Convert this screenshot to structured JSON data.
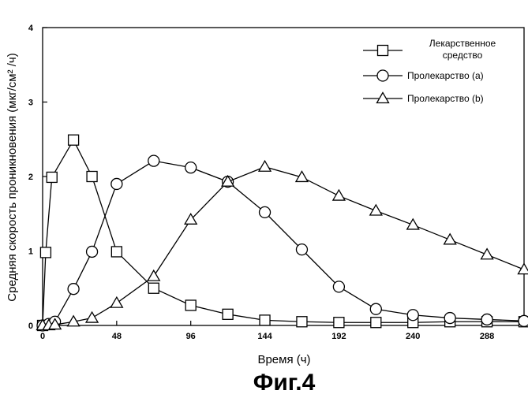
{
  "chart_data": {
    "type": "line",
    "title": "",
    "caption": "Фиг.4",
    "xlabel": "Время (ч)",
    "ylabel": "Средняя скорость проникновения (мкг/см² /ч)",
    "xlim": [
      0,
      312
    ],
    "ylim": [
      0,
      4
    ],
    "xticks": [
      0,
      48,
      96,
      144,
      192,
      240,
      288
    ],
    "yticks": [
      0,
      1,
      2,
      3,
      4
    ],
    "grid": false,
    "legend_position": "top-right",
    "series": [
      {
        "name": "Лекарственное средство",
        "name_line2": "средство",
        "marker": "square",
        "points": [
          [
            0,
            0
          ],
          [
            2,
            0.98
          ],
          [
            6,
            1.99
          ],
          [
            20,
            2.49
          ],
          [
            32,
            2.0
          ],
          [
            48,
            0.99
          ],
          [
            72,
            0.5
          ],
          [
            96,
            0.27
          ],
          [
            120,
            0.15
          ],
          [
            144,
            0.07
          ],
          [
            168,
            0.05
          ],
          [
            192,
            0.04
          ],
          [
            216,
            0.04
          ],
          [
            240,
            0.04
          ],
          [
            264,
            0.05
          ],
          [
            288,
            0.05
          ],
          [
            312,
            0.05
          ]
        ]
      },
      {
        "name": "Пролекарство (a)",
        "marker": "circle",
        "points": [
          [
            0,
            0
          ],
          [
            4,
            0.02
          ],
          [
            8,
            0.05
          ],
          [
            20,
            0.49
          ],
          [
            32,
            0.99
          ],
          [
            48,
            1.9
          ],
          [
            72,
            2.21
          ],
          [
            96,
            2.12
          ],
          [
            120,
            1.93
          ],
          [
            144,
            1.52
          ],
          [
            168,
            1.02
          ],
          [
            192,
            0.52
          ],
          [
            216,
            0.22
          ],
          [
            240,
            0.14
          ],
          [
            264,
            0.1
          ],
          [
            288,
            0.08
          ],
          [
            312,
            0.06
          ]
        ]
      },
      {
        "name": "Пролекарство (b)",
        "marker": "triangle",
        "points": [
          [
            0,
            0
          ],
          [
            4,
            0
          ],
          [
            8,
            0.01
          ],
          [
            20,
            0.05
          ],
          [
            32,
            0.1
          ],
          [
            48,
            0.3
          ],
          [
            72,
            0.66
          ],
          [
            96,
            1.42
          ],
          [
            120,
            1.93
          ],
          [
            144,
            2.13
          ],
          [
            168,
            1.99
          ],
          [
            192,
            1.74
          ],
          [
            216,
            1.54
          ],
          [
            240,
            1.35
          ],
          [
            264,
            1.15
          ],
          [
            288,
            0.95
          ],
          [
            312,
            0.75
          ]
        ]
      }
    ]
  }
}
